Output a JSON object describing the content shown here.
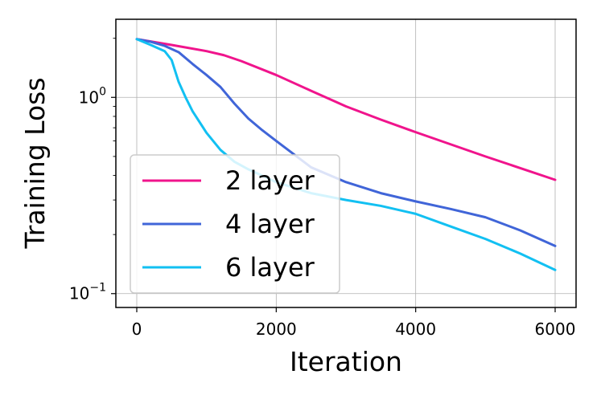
{
  "chart_data": {
    "type": "line",
    "title": "",
    "xlabel": "Iteration",
    "ylabel": "Training Loss",
    "x_scale": "linear",
    "y_scale": "log",
    "xlim": [
      -300,
      6300
    ],
    "ylim": [
      0.085,
      2.5
    ],
    "x_ticks": [
      {
        "value": 0,
        "label": "0"
      },
      {
        "value": 2000,
        "label": "2000"
      },
      {
        "value": 4000,
        "label": "4000"
      },
      {
        "value": 6000,
        "label": "6000"
      }
    ],
    "y_ticks": [
      {
        "value": 1.0,
        "base": "10",
        "exponent": "0"
      },
      {
        "value": 0.1,
        "base": "10",
        "exponent": "−1"
      }
    ],
    "grid": true,
    "legend_position": "lower-left",
    "series": [
      {
        "name": "2 layer",
        "color": "#f0148c",
        "x": [
          0,
          500,
          1000,
          1250,
          1500,
          2000,
          2500,
          3000,
          3500,
          4000,
          5000,
          6000
        ],
        "y": [
          1.98,
          1.85,
          1.72,
          1.64,
          1.53,
          1.3,
          1.08,
          0.9,
          0.77,
          0.665,
          0.5,
          0.38
        ]
      },
      {
        "name": "4 layer",
        "color": "#4065d8",
        "x": [
          0,
          200,
          400,
          600,
          800,
          1000,
          1200,
          1400,
          1600,
          1800,
          2000,
          2500,
          3000,
          3500,
          4000,
          4500,
          5000,
          5500,
          6000
        ],
        "y": [
          1.98,
          1.92,
          1.83,
          1.7,
          1.48,
          1.3,
          1.13,
          0.93,
          0.78,
          0.68,
          0.6,
          0.44,
          0.37,
          0.325,
          0.295,
          0.27,
          0.245,
          0.21,
          0.175
        ]
      },
      {
        "name": "6 layer",
        "color": "#12c0f2",
        "x": [
          0,
          200,
          400,
          500,
          600,
          700,
          800,
          1000,
          1200,
          1400,
          1600,
          2000,
          2500,
          3000,
          3500,
          4000,
          4500,
          5000,
          5500,
          6000
        ],
        "y": [
          1.98,
          1.85,
          1.72,
          1.55,
          1.2,
          1.0,
          0.85,
          0.66,
          0.54,
          0.47,
          0.43,
          0.37,
          0.325,
          0.3,
          0.28,
          0.255,
          0.22,
          0.19,
          0.16,
          0.132
        ]
      }
    ]
  }
}
